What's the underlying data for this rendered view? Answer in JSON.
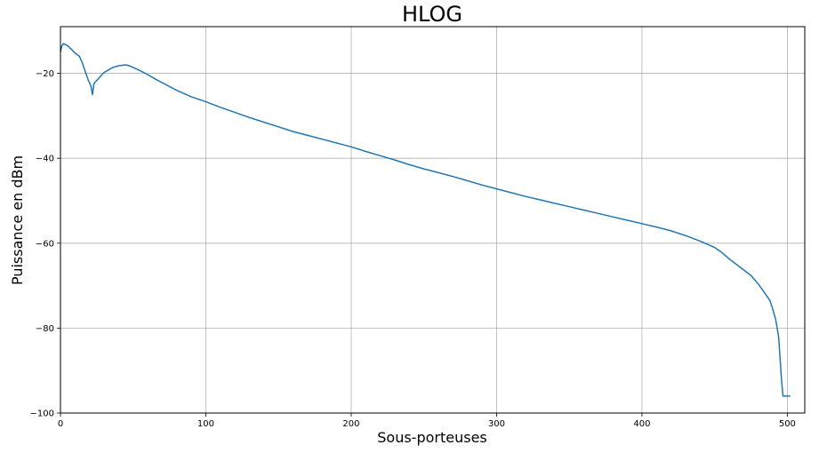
{
  "chart_data": {
    "type": "line",
    "title": "HLOG",
    "xlabel": "Sous-porteuses",
    "ylabel": "Puissance en dBm",
    "xlim": [
      0,
      512
    ],
    "ylim": [
      -100,
      -9
    ],
    "xticks": [
      0,
      100,
      200,
      300,
      400,
      500
    ],
    "yticks": [
      -100,
      -80,
      -60,
      -40,
      -20
    ],
    "xtick_labels": [
      "0",
      "100",
      "200",
      "300",
      "400",
      "500"
    ],
    "ytick_labels": [
      "−100",
      "−80",
      "−60",
      "−40",
      "−20"
    ],
    "grid": true,
    "legend": "none",
    "series": [
      {
        "color": "#1f77b4",
        "x": [
          0,
          1,
          2,
          5,
          8,
          10,
          13,
          15,
          17,
          19,
          21,
          22,
          23,
          24,
          26,
          28,
          30,
          33,
          36,
          40,
          45,
          48,
          50,
          55,
          60,
          65,
          70,
          80,
          90,
          100,
          110,
          120,
          130,
          140,
          150,
          160,
          170,
          180,
          190,
          200,
          210,
          220,
          230,
          240,
          250,
          260,
          270,
          280,
          290,
          300,
          310,
          320,
          330,
          340,
          350,
          360,
          370,
          380,
          390,
          400,
          410,
          420,
          430,
          440,
          450,
          455,
          460,
          465,
          470,
          475,
          480,
          485,
          488,
          490,
          492,
          494,
          496,
          497,
          498,
          499,
          500,
          502
        ],
        "y": [
          -15,
          -13.5,
          -13,
          -13.5,
          -14.5,
          -15.2,
          -16,
          -17.5,
          -19.5,
          -21.5,
          -23,
          -25,
          -22.5,
          -22,
          -21.3,
          -20.5,
          -19.8,
          -19.2,
          -18.6,
          -18.2,
          -18,
          -18.3,
          -18.6,
          -19.4,
          -20.3,
          -21.3,
          -22.2,
          -24,
          -25.5,
          -26.7,
          -28,
          -29.2,
          -30.4,
          -31.5,
          -32.6,
          -33.7,
          -34.6,
          -35.5,
          -36.4,
          -37.3,
          -38.4,
          -39.4,
          -40.4,
          -41.5,
          -42.5,
          -43.4,
          -44.3,
          -45.3,
          -46.3,
          -47.2,
          -48.1,
          -49.0,
          -49.8,
          -50.6,
          -51.4,
          -52.2,
          -53.0,
          -53.8,
          -54.6,
          -55.4,
          -56.2,
          -57.1,
          -58.2,
          -59.5,
          -61.0,
          -62.2,
          -63.7,
          -65.0,
          -66.3,
          -67.6,
          -69.6,
          -72.0,
          -73.5,
          -75.5,
          -78.0,
          -82.0,
          -92.0,
          -96.0,
          -96.0,
          -96.0,
          -96.0,
          -96.0
        ]
      }
    ]
  }
}
